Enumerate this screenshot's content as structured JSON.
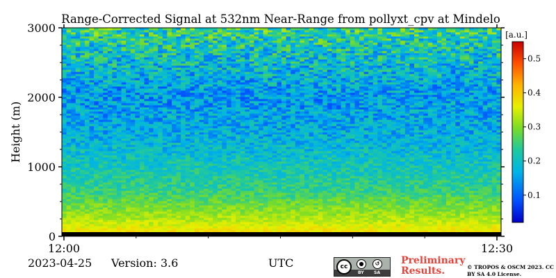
{
  "chart_data": {
    "type": "heatmap",
    "title": "Range-Corrected Signal at 532nm Near-Range from pollyxt_cpv at Mindelo",
    "ylabel": "Height (m)",
    "xlabel": "UTC",
    "x_tick_labels": [
      "12:00",
      "12:30"
    ],
    "y_ticks": [
      0,
      1000,
      2000,
      3000
    ],
    "ylim": [
      0,
      3000
    ],
    "colorbar": {
      "unit_label": "[a.u.]",
      "ticks": [
        0.1,
        0.2,
        0.3,
        0.4,
        0.5
      ],
      "tick_labels": [
        "0.1",
        "0.2",
        "0.3",
        "0.4",
        "0.5"
      ],
      "range": [
        0.02,
        0.55
      ],
      "colormap": "jet"
    },
    "profile": {
      "heights": [
        0,
        40,
        100,
        200,
        300,
        500,
        700,
        1000,
        1500,
        2000,
        2500,
        3000
      ],
      "values": [
        0.04,
        0.38,
        0.37,
        0.34,
        0.32,
        0.28,
        0.24,
        0.21,
        0.17,
        0.15,
        0.19,
        0.24
      ]
    }
  },
  "footer": {
    "date": "2023-04-25",
    "version": "Version: 3.6",
    "preliminary": "Preliminary Results.",
    "copyright": "© TROPOS & OSCM 2023. CC BY SA 4.0 License.",
    "license_badge": {
      "cc": "cc",
      "by": "BY",
      "sa": "SA"
    }
  }
}
